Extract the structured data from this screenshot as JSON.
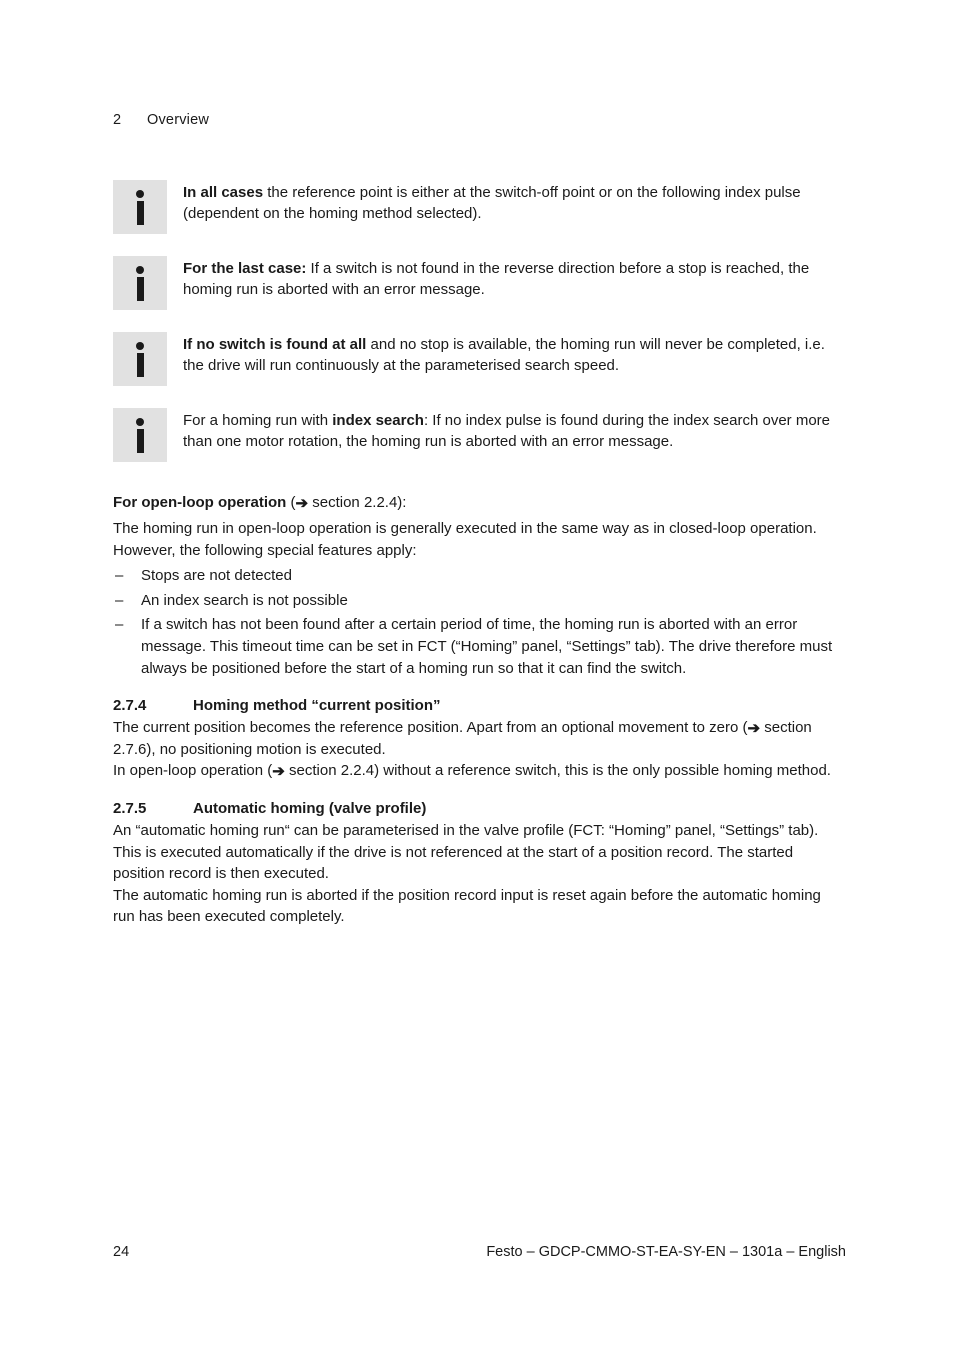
{
  "header": {
    "section_num": "2",
    "section_title": "Overview"
  },
  "info_notes": [
    {
      "bold_prefix": "In all cases",
      "rest": " the reference point is either at the switch-off point or on the following index pulse (dependent on the homing method selected)."
    },
    {
      "bold_prefix": "For the last case:",
      "rest": " If a switch is not found in the reverse direction before a stop is reached, the homing run is aborted with an error message."
    },
    {
      "bold_prefix": "If no switch is found at all",
      "rest": " and no stop is available, the homing run will never be completed, i.e. the drive will run continuously at the parameterised search speed."
    },
    {
      "pre": "For a homing run with ",
      "bold_mid": "index search",
      "post": ": If no index pulse is found during the index search over more than one motor rotation, the homing run is aborted with an error message."
    }
  ],
  "openloop": {
    "lead_bold": "For open-loop operation",
    "lead_ref": " section 2.2.4):",
    "para": "The homing run in open-loop operation is generally executed in the same way as in closed-loop operation. However, the following special features apply:",
    "bullets": [
      "Stops are not detected",
      "An index search is not possible",
      "If a switch has not been found after a certain period of time, the homing run is aborted with an error message. This timeout time can be set in FCT (“Homing” panel, “Settings” tab). The drive therefore must always be positioned before the start of a homing run so that it can find the switch."
    ]
  },
  "sec_274": {
    "num": "2.7.4",
    "title": "Homing method “current position”",
    "p1_pre": "The current position becomes the reference position. Apart from an optional movement to zero (",
    "p1_ref": " section 2.7.6), no positioning motion is executed.",
    "p2_pre": "In open-loop operation (",
    "p2_ref": " section 2.2.4) without a reference switch, this is the only possible homing method."
  },
  "sec_275": {
    "num": "2.7.5",
    "title": "Automatic homing (valve profile)",
    "p1": "An “automatic homing run“ can be parameterised in the valve profile (FCT: “Homing” panel, “Settings” tab).",
    "p2": "This is executed automatically if the drive is not referenced at the start of a position record. The started position record is then executed.",
    "p3": "The automatic homing run is aborted if the position record input is reset again before the automatic homing run has been executed completely."
  },
  "footer": {
    "page": "24",
    "docid": "Festo – GDCP-CMMO-ST-EA-SY-EN – 1301a – English"
  },
  "colors": {
    "icon_bg": "#e1e1e1",
    "text": "#1a1a1a",
    "page_bg": "#ffffff"
  }
}
